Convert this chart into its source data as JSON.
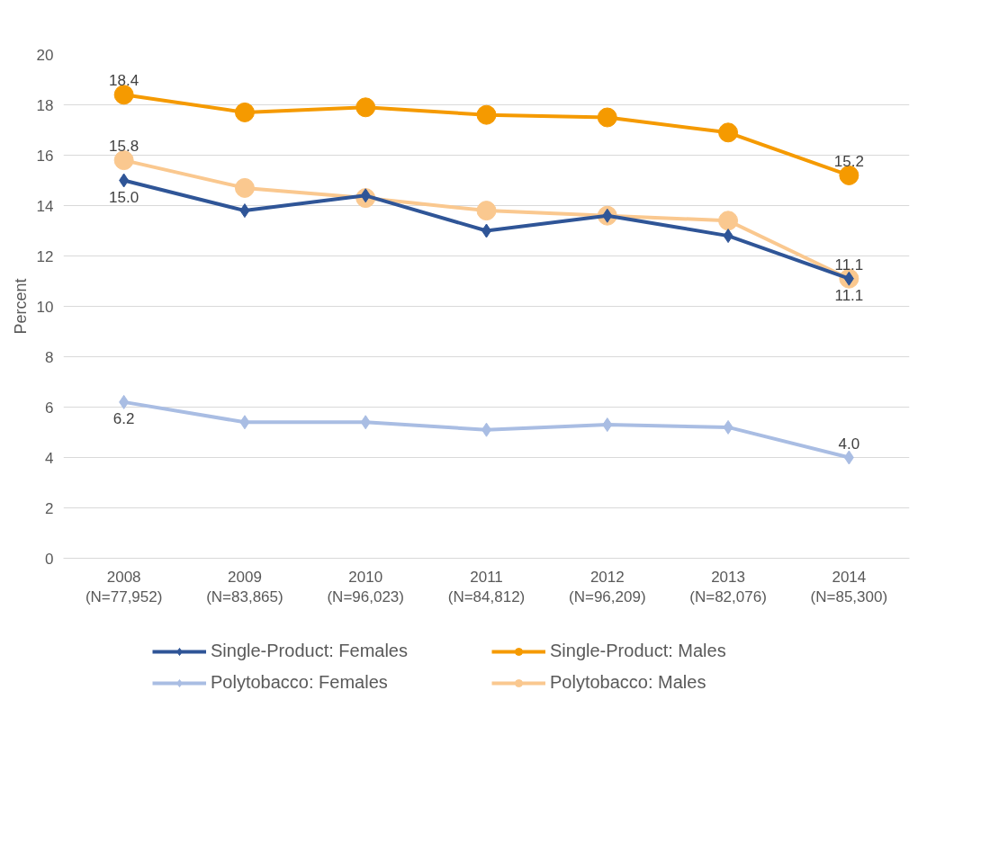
{
  "chart_data": {
    "type": "line",
    "ylabel": "Percent",
    "categories": [
      "2008\n(N=77,952)",
      "2009\n(N=83,865)",
      "2010\n(N=96,023)",
      "2011\n(N=84,812)",
      "2012\n(N=96,209)",
      "2013\n(N=82,076)",
      "2014\n(N=85,300)"
    ],
    "series": [
      {
        "name": "Single-Product: Females",
        "color": "#2f5597",
        "marker": "diamond",
        "values": [
          15.0,
          13.8,
          14.4,
          13.0,
          13.6,
          12.8,
          11.1
        ],
        "value_labels": [
          "15.0",
          null,
          null,
          null,
          null,
          null,
          "11.1"
        ]
      },
      {
        "name": "Single-Product: Males",
        "color": "#f59a00",
        "marker": "circle",
        "values": [
          18.4,
          17.7,
          17.9,
          17.6,
          17.5,
          16.9,
          15.2
        ],
        "value_labels": [
          "18.4",
          null,
          null,
          null,
          null,
          null,
          "15.2"
        ]
      },
      {
        "name": "Polytobacco: Females",
        "color": "#a9bde3",
        "marker": "diamond",
        "values": [
          6.2,
          5.4,
          5.4,
          5.1,
          5.3,
          5.2,
          4.0
        ],
        "value_labels": [
          "6.2",
          null,
          null,
          null,
          null,
          null,
          "4.0"
        ]
      },
      {
        "name": "Polytobacco: Males",
        "color": "#fac88f",
        "marker": "circle",
        "values": [
          15.8,
          14.7,
          14.3,
          13.8,
          13.6,
          13.4,
          11.1
        ],
        "value_labels": [
          "15.8",
          null,
          null,
          null,
          null,
          null,
          "11.1"
        ]
      }
    ],
    "ylim": [
      0,
      20
    ],
    "yticks": [
      0,
      2,
      4,
      6,
      8,
      10,
      12,
      14,
      16,
      18,
      20
    ],
    "grid": "y",
    "legend": "bottom",
    "line_style": "solid"
  }
}
